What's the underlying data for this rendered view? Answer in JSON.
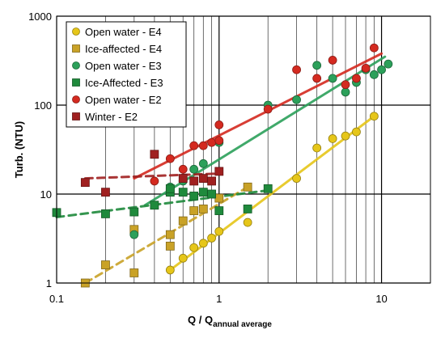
{
  "chart_data": {
    "type": "scatter",
    "x_scale": "log",
    "y_scale": "log",
    "xlim": [
      0.1,
      20
    ],
    "ylim": [
      1,
      1000
    ],
    "grid": true,
    "legend_position": "top-left",
    "xlabel": "Q / Q",
    "xlabel_subscript": "annual average",
    "ylabel": "Turb. (NTU)",
    "x_ticks": [
      {
        "value": 0.1,
        "label": "0.1"
      },
      {
        "value": 1,
        "label": "1"
      },
      {
        "value": 10,
        "label": "10"
      }
    ],
    "y_ticks": [
      {
        "value": 1,
        "label": "1"
      },
      {
        "value": 10,
        "label": "10"
      },
      {
        "value": 100,
        "label": "100"
      },
      {
        "value": 1000,
        "label": "1000"
      }
    ],
    "series": [
      {
        "name": "Open water - E4",
        "marker": "circle",
        "color": "#e6c619",
        "points": [
          [
            0.5,
            1.4
          ],
          [
            0.6,
            1.9
          ],
          [
            0.7,
            2.5
          ],
          [
            0.8,
            2.8
          ],
          [
            0.9,
            3.2
          ],
          [
            1.0,
            3.8
          ],
          [
            1.5,
            4.8
          ],
          [
            3,
            15
          ],
          [
            4,
            33
          ],
          [
            5,
            42
          ],
          [
            6,
            45
          ],
          [
            7,
            50
          ],
          [
            9,
            75
          ]
        ],
        "fit": {
          "style": "solid",
          "from": [
            0.5,
            1.4
          ],
          "to": [
            9,
            75
          ]
        }
      },
      {
        "name": "Ice-affected - E4",
        "marker": "square",
        "color": "#c9a227",
        "points": [
          [
            0.15,
            1.0
          ],
          [
            0.2,
            1.6
          ],
          [
            0.3,
            1.3
          ],
          [
            0.3,
            4.0
          ],
          [
            0.5,
            2.6
          ],
          [
            0.5,
            3.5
          ],
          [
            0.6,
            5.0
          ],
          [
            0.7,
            6.5
          ],
          [
            0.8,
            6.8
          ],
          [
            1.0,
            9.0
          ],
          [
            1.5,
            12
          ]
        ],
        "fit": {
          "style": "dashed",
          "from": [
            0.15,
            1.0
          ],
          "to": [
            1.5,
            12
          ]
        }
      },
      {
        "name": "Open water - E3",
        "marker": "circle",
        "color": "#2ca05a",
        "points": [
          [
            0.3,
            3.5
          ],
          [
            0.5,
            12
          ],
          [
            0.6,
            14
          ],
          [
            0.7,
            19
          ],
          [
            0.8,
            22
          ],
          [
            1.0,
            38
          ],
          [
            2,
            100
          ],
          [
            3,
            115
          ],
          [
            4,
            280
          ],
          [
            5,
            200
          ],
          [
            6,
            140
          ],
          [
            7,
            180
          ],
          [
            8,
            250
          ],
          [
            9,
            220
          ],
          [
            10,
            250
          ],
          [
            11,
            290
          ]
        ],
        "fit": {
          "style": "solid",
          "from": [
            0.35,
            7.5
          ],
          "to": [
            10.5,
            350
          ]
        }
      },
      {
        "name": "Ice-Affected - E3",
        "marker": "square",
        "color": "#1f8a3c",
        "points": [
          [
            0.1,
            6.2
          ],
          [
            0.2,
            6.0
          ],
          [
            0.3,
            6.3
          ],
          [
            0.4,
            7.5
          ],
          [
            0.5,
            10.5
          ],
          [
            0.5,
            11.5
          ],
          [
            0.6,
            10.5
          ],
          [
            0.7,
            9.5
          ],
          [
            0.8,
            10.5
          ],
          [
            0.9,
            10
          ],
          [
            1.0,
            6.5
          ],
          [
            1.5,
            6.8
          ],
          [
            2,
            11.5
          ]
        ],
        "fit": {
          "style": "dashed",
          "from": [
            0.1,
            5.5
          ],
          "to": [
            2,
            11
          ]
        }
      },
      {
        "name": "Open water - E2",
        "marker": "circle",
        "color": "#d42a20",
        "points": [
          [
            0.4,
            14
          ],
          [
            0.5,
            25
          ],
          [
            0.6,
            19
          ],
          [
            0.7,
            35
          ],
          [
            0.8,
            35
          ],
          [
            0.9,
            38
          ],
          [
            1.0,
            40
          ],
          [
            1.0,
            60
          ],
          [
            2,
            90
          ],
          [
            3,
            250
          ],
          [
            4,
            200
          ],
          [
            5,
            320
          ],
          [
            6,
            170
          ],
          [
            7,
            200
          ],
          [
            8,
            260
          ],
          [
            9,
            440
          ]
        ],
        "fit": {
          "style": "solid",
          "from": [
            0.3,
            15
          ],
          "to": [
            10,
            380
          ]
        }
      },
      {
        "name": "Winter - E2",
        "marker": "square",
        "color": "#a02020",
        "points": [
          [
            0.15,
            13.5
          ],
          [
            0.2,
            10.5
          ],
          [
            0.4,
            28
          ],
          [
            0.6,
            15
          ],
          [
            0.7,
            14
          ],
          [
            0.8,
            15
          ],
          [
            0.9,
            14
          ],
          [
            1.0,
            18
          ]
        ],
        "fit": {
          "style": "dashed",
          "from": [
            0.15,
            15
          ],
          "to": [
            1.0,
            17
          ]
        }
      }
    ]
  }
}
